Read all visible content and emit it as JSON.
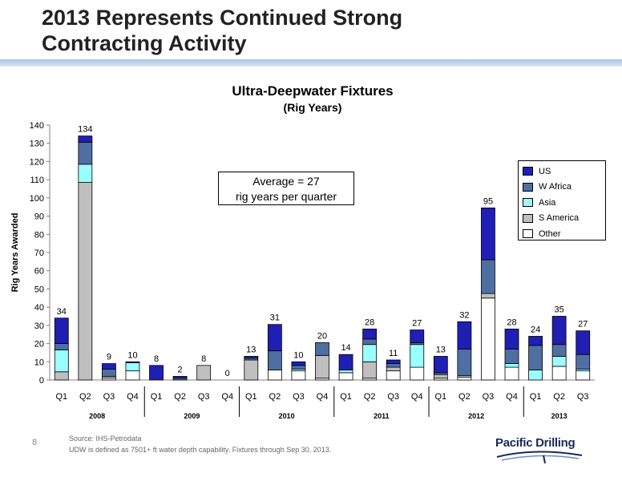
{
  "slide": {
    "title_line1": "2013 Represents Continued Strong",
    "title_line2": "Contracting Activity",
    "page_number": "8"
  },
  "footnote": {
    "source": "Source: IHS-Petrodata",
    "definition": "UDW is defined as 7501+ ft water depth capability.  Fixtures through Sep 30, 2013."
  },
  "logo": {
    "text": "Pacific Drilling"
  },
  "annotation": {
    "line1": "Average = 27",
    "line2": "rig years per quarter"
  },
  "chart_data": {
    "type": "bar",
    "stacked": true,
    "title": "Ultra-Deepwater Fixtures",
    "subtitle": "(Rig Years)",
    "xlabel": "",
    "ylabel": "Rig Years Awarded",
    "ylim": [
      0,
      140
    ],
    "yticks": [
      0,
      10,
      20,
      30,
      40,
      50,
      60,
      70,
      80,
      90,
      100,
      110,
      120,
      130,
      140
    ],
    "grid": false,
    "legend_position": "right",
    "categories": [
      "Q1",
      "Q2",
      "Q3",
      "Q4",
      "Q1",
      "Q2",
      "Q3",
      "Q4",
      "Q1",
      "Q2",
      "Q3",
      "Q4",
      "Q1",
      "Q2",
      "Q3",
      "Q4",
      "Q1",
      "Q2",
      "Q3",
      "Q4",
      "Q1",
      "Q2",
      "Q3"
    ],
    "groups": [
      {
        "label": "2008",
        "count": 4
      },
      {
        "label": "2009",
        "count": 4
      },
      {
        "label": "2010",
        "count": 4
      },
      {
        "label": "2011",
        "count": 4
      },
      {
        "label": "2012",
        "count": 4
      },
      {
        "label": "2013",
        "count": 3
      }
    ],
    "totals": [
      "34",
      "134",
      "9",
      "10",
      "8",
      "2",
      "8",
      "0",
      "13",
      "31",
      "10",
      "20",
      "14",
      "28",
      "11",
      "27",
      "13",
      "32",
      "95",
      "28",
      "24",
      "35",
      "27"
    ],
    "series": [
      {
        "name": "Other",
        "color": "#ffffff",
        "values": [
          0,
          0,
          1,
          5,
          0,
          0,
          0,
          0,
          0,
          5.5,
          5,
          1,
          4,
          1,
          5,
          7,
          1,
          1.5,
          45,
          7,
          0,
          7.5,
          5
        ]
      },
      {
        "name": "S America",
        "color": "#bfbfbf",
        "values": [
          4.5,
          108.5,
          1,
          0,
          0,
          0,
          8,
          0,
          11,
          0,
          0,
          12.5,
          0,
          9,
          2,
          0,
          2,
          1,
          2.5,
          0,
          0,
          0,
          0
        ]
      },
      {
        "name": "Asia",
        "color": "#99ffff",
        "values": [
          12,
          10,
          0,
          4.5,
          0,
          0,
          0,
          0,
          0,
          0,
          1,
          0,
          1.5,
          9.5,
          0,
          12.5,
          0,
          0,
          0,
          2,
          5.5,
          5.5,
          1
        ]
      },
      {
        "name": "W Africa",
        "color": "#4f6fa3",
        "values": [
          3.5,
          12,
          4,
          0,
          0,
          1,
          0,
          0,
          1,
          10.5,
          2,
          7,
          0,
          3,
          2,
          1,
          1,
          14.5,
          18.5,
          8,
          13.5,
          6.5,
          8
        ]
      },
      {
        "name": "US",
        "color": "#1f1fb4",
        "values": [
          14,
          3.5,
          3,
          0.5,
          8,
          1,
          0,
          0,
          1,
          14.5,
          2,
          0,
          8.5,
          5.5,
          2,
          7,
          9,
          15,
          28.5,
          11,
          5,
          15.5,
          13
        ]
      }
    ]
  }
}
